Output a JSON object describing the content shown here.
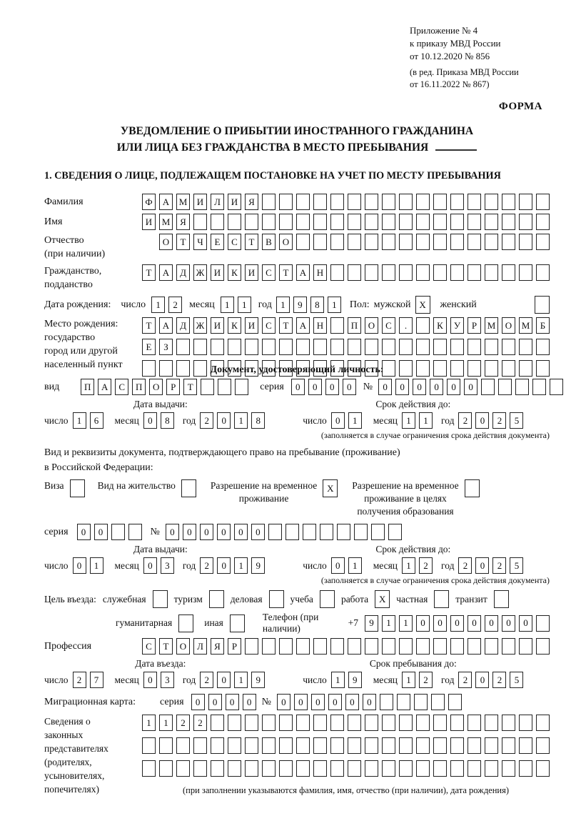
{
  "header": {
    "appendix_lines": [
      "Приложение № 4",
      "к приказу МВД России",
      "от 10.12.2020 № 856"
    ],
    "edition_lines": [
      "(в ред. Приказа МВД России",
      "от 16.11.2022 № 867)"
    ],
    "form_label": "ФОРМА"
  },
  "title": {
    "line1": "УВЕДОМЛЕНИЕ О ПРИБЫТИИ ИНОСТРАННОГО ГРАЖДАНИНА",
    "line2": "ИЛИ ЛИЦА БЕЗ ГРАЖДАНСТВА В МЕСТО ПРЕБЫВАНИЯ"
  },
  "section1_heading": "1. СВЕДЕНИЯ О ЛИЦЕ, ПОДЛЕЖАЩЕМ ПОСТАНОВКЕ НА УЧЕТ ПО МЕСТУ ПРЕБЫВАНИЯ",
  "common": {
    "day_label": "число",
    "month_label": "месяц",
    "year_label": "год"
  },
  "surname": {
    "label": "Фамилия",
    "cells": {
      "value": "ФАМИЛИЯ",
      "len": 24
    }
  },
  "given_name": {
    "label": "Имя",
    "cells": {
      "value": "ИМЯ",
      "len": 24
    }
  },
  "patronymic": {
    "label_line1": "Отчество",
    "label_line2": "(при наличии)",
    "cells": {
      "value": "ОТЧЕСТВО",
      "len": 23
    }
  },
  "citizenship": {
    "label_line1": "Гражданство,",
    "label_line2": "подданство",
    "cells": {
      "value": "ТАДЖИКИСТАН",
      "len": 24
    }
  },
  "birth_date": {
    "label": "Дата рождения:",
    "day": {
      "value": "12",
      "len": 2
    },
    "month": {
      "value": "11",
      "len": 2
    },
    "year": {
      "value": "1981",
      "len": 4
    },
    "sex_label": "Пол:",
    "male_label": "мужской",
    "male_box": {
      "value": "X",
      "len": 1
    },
    "female_label": "женский",
    "female_box": {
      "value": "",
      "len": 1
    }
  },
  "birth_place": {
    "label_lines": [
      "Место рождения:",
      "государство",
      "город или другой",
      "населенный пункт"
    ],
    "row1": {
      "value": "ТАДЖИКИСТАН ПОС. КУРМОМБ",
      "len": 24
    },
    "row2": {
      "value": "ЕЗ",
      "len": 24
    },
    "row3": {
      "value": "",
      "len": 24
    }
  },
  "identity_doc": {
    "heading": "Документ, удостоверяющий личность:",
    "kind_label": "вид",
    "kind": {
      "value": "ПАСПОРТ",
      "len": 10
    },
    "series_label": "серия",
    "series": {
      "value": "0000",
      "len": 4
    },
    "number_label": "№",
    "number": {
      "value": "000000",
      "len": 11
    },
    "issue_heading": "Дата выдачи:",
    "issue_day": {
      "value": "16",
      "len": 2
    },
    "issue_month": {
      "value": "08",
      "len": 2
    },
    "issue_year": {
      "value": "2018",
      "len": 4
    },
    "expiry_heading": "Срок действия до:",
    "expiry_day": {
      "value": "01",
      "len": 2
    },
    "expiry_month": {
      "value": "11",
      "len": 2
    },
    "expiry_year": {
      "value": "2025",
      "len": 4
    },
    "note": "(заполняется в случае ограничения срока действия документа)"
  },
  "residence_doc": {
    "intro_line1": "Вид и реквизиты документа, подтверждающего право на пребывание (проживание)",
    "intro_line2": "в Российской Федерации:",
    "visa_label": "Виза",
    "visa_box": {
      "value": "",
      "len": 1
    },
    "vnj_label": "Вид на жительство",
    "vnj_box": {
      "value": "",
      "len": 1
    },
    "rvp_label_line1": "Разрешение на временное",
    "rvp_label_line2": "проживание",
    "rvp_box": {
      "value": "X",
      "len": 1
    },
    "rvpo_label_line1": "Разрешение на временное",
    "rvpo_label_line2": "проживание в целях",
    "rvpo_label_line3": "получения образования",
    "rvpo_box": {
      "value": "",
      "len": 1
    },
    "series_label": "серия",
    "series": {
      "value": "00",
      "len": 4
    },
    "number_label": "№",
    "number": {
      "value": "000000",
      "len": 14
    },
    "issue_heading": "Дата выдачи:",
    "issue_day": {
      "value": "01",
      "len": 2
    },
    "issue_month": {
      "value": "03",
      "len": 2
    },
    "issue_year": {
      "value": "2019",
      "len": 4
    },
    "expiry_heading": "Срок действия до:",
    "expiry_day": {
      "value": "01",
      "len": 2
    },
    "expiry_month": {
      "value": "12",
      "len": 2
    },
    "expiry_year": {
      "value": "2025",
      "len": 4
    },
    "note": "(заполняется в случае ограничения срока действия документа)"
  },
  "purpose": {
    "label": "Цель въезда:",
    "opt_service": "служебная",
    "box_service": {
      "value": "",
      "len": 1
    },
    "opt_tourism": "туризм",
    "box_tourism": {
      "value": "",
      "len": 1
    },
    "opt_business": "деловая",
    "box_business": {
      "value": "",
      "len": 1
    },
    "opt_study": "учеба",
    "box_study": {
      "value": "",
      "len": 1
    },
    "opt_work": "работа",
    "box_work": {
      "value": "X",
      "len": 1
    },
    "opt_private": "частная",
    "box_private": {
      "value": "",
      "len": 1
    },
    "opt_transit": "транзит",
    "box_transit": {
      "value": "",
      "len": 1
    },
    "opt_humanitarian": "гуманитарная",
    "box_humanitarian": {
      "value": "",
      "len": 1
    },
    "opt_other": "иная",
    "box_other": {
      "value": "",
      "len": 1
    },
    "phone_label": "Телефон (при наличии)",
    "phone_prefix": "+7",
    "phone": {
      "value": "9110000000",
      "len": 11
    }
  },
  "profession": {
    "label": "Профессия",
    "cells": {
      "value": "СТОЛЯР",
      "len": 24
    }
  },
  "stay": {
    "entry_heading": "Дата въезда:",
    "entry_day": {
      "value": "27",
      "len": 2
    },
    "entry_month": {
      "value": "03",
      "len": 2
    },
    "entry_year": {
      "value": "2019",
      "len": 4
    },
    "until_heading": "Срок пребывания до:",
    "until_day": {
      "value": "19",
      "len": 2
    },
    "until_month": {
      "value": "12",
      "len": 2
    },
    "until_year": {
      "value": "2025",
      "len": 4
    }
  },
  "migration_card": {
    "label": "Миграционная карта:",
    "series_label": "серия",
    "series": {
      "value": "0000",
      "len": 4
    },
    "number_label": "№",
    "number": {
      "value": "000000",
      "len": 11
    }
  },
  "representatives": {
    "label_lines": [
      "Сведения о",
      "законных",
      "представителях",
      "(родителях,",
      "усыновителях,",
      "попечителях)"
    ],
    "row1": {
      "value": "1122",
      "len": 24
    },
    "row2": {
      "value": "",
      "len": 24
    },
    "row3": {
      "value": "",
      "len": 24
    },
    "note": "(при заполнении указываются фамилия, имя, отчество (при наличии), дата рождения)"
  }
}
